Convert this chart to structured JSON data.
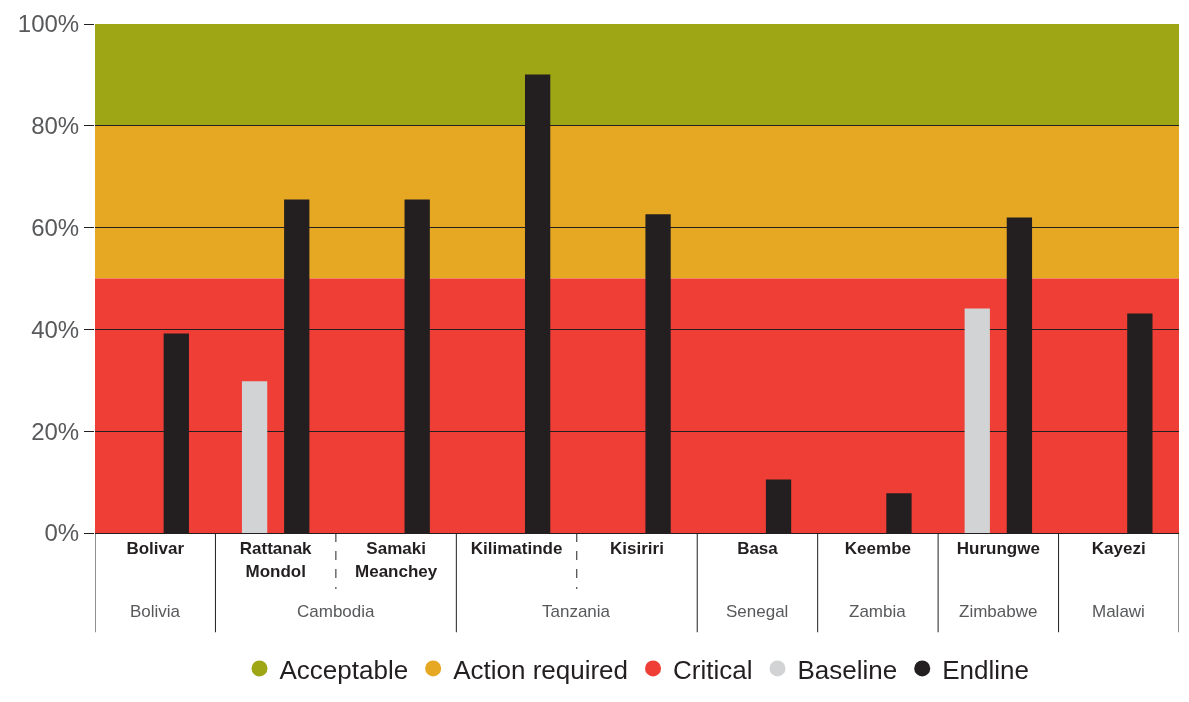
{
  "chart_data": {
    "type": "bar",
    "categories": [
      "Bolivar",
      "Rattanak\nMondol",
      "Samaki\nMeanchey",
      "Kilimatinde",
      "Kisiriri",
      "Basa",
      "Keembe",
      "Hurungwe",
      "Kayezi"
    ],
    "series": [
      {
        "name": "Baseline",
        "color": "#d1d3d4",
        "values": [
          null,
          29.8,
          null,
          null,
          null,
          null,
          null,
          44.1,
          null
        ]
      },
      {
        "name": "Endline",
        "color": "#231f20",
        "values": [
          39.2,
          65.5,
          65.5,
          90.1,
          62.6,
          10.5,
          7.8,
          62.0,
          43.1
        ]
      }
    ],
    "bands": [
      {
        "axis": "y",
        "from": 80,
        "to": 100,
        "label": "Acceptable",
        "color": "#9fa615"
      },
      {
        "axis": "y",
        "from": 50,
        "to": 80,
        "label": "Action required",
        "color": "#e6a722"
      },
      {
        "axis": "y",
        "from": 0,
        "to": 50,
        "label": "Critical",
        "color": "#ee3e36"
      }
    ],
    "annotations": [
      "Bolivia",
      "Cambodia",
      "Tanzania",
      "Senegal",
      "Zambia",
      "Zimbabwe",
      "Malawi"
    ],
    "ylim": [
      0,
      100
    ],
    "yticks": [
      {
        "value": 0,
        "label": "0%"
      },
      {
        "value": 20,
        "label": "20%"
      },
      {
        "value": 40,
        "label": "40%"
      },
      {
        "value": 60,
        "label": "60%"
      },
      {
        "value": 80,
        "label": "80%"
      },
      {
        "value": 100,
        "label": "100%"
      }
    ],
    "grid": "y",
    "legend": "bottom"
  }
}
